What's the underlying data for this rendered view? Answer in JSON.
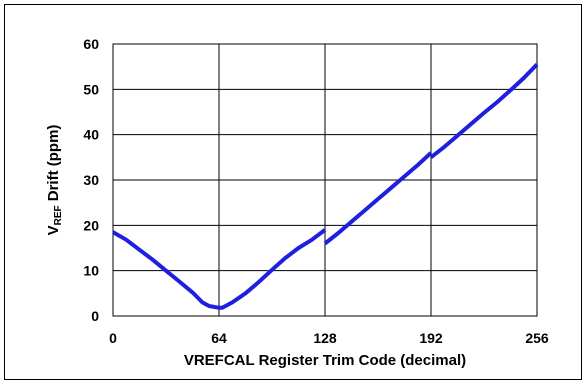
{
  "chart_data": {
    "type": "line",
    "xlabel": "VREFCAL Register Trim Code (decimal)",
    "ylabel_main": "V",
    "ylabel_sub": "REF",
    "ylabel_rest": " Drift (ppm)",
    "xlim": [
      0,
      256
    ],
    "ylim": [
      0,
      60
    ],
    "x_ticks": [
      0,
      64,
      128,
      192,
      256
    ],
    "y_ticks": [
      0,
      10,
      20,
      30,
      40,
      50,
      60
    ],
    "grid": true,
    "colors": {
      "line": "#1f1fe0",
      "axis": "#000000",
      "grid": "#000000"
    },
    "series": [
      {
        "segments": [
          [
            [
              0,
              18.5
            ],
            [
              8,
              16.8
            ],
            [
              16,
              14.6
            ],
            [
              24,
              12.4
            ],
            [
              32,
              10.0
            ],
            [
              40,
              7.6
            ],
            [
              48,
              5.2
            ],
            [
              54,
              3.0
            ],
            [
              58,
              2.2
            ],
            [
              64,
              1.8
            ],
            [
              66,
              1.8
            ],
            [
              72,
              3.0
            ],
            [
              80,
              5.0
            ],
            [
              88,
              7.5
            ],
            [
              96,
              10.2
            ],
            [
              104,
              12.8
            ],
            [
              112,
              15.0
            ],
            [
              120,
              16.8
            ],
            [
              128,
              19.0
            ]
          ],
          [
            [
              128,
              16.0
            ],
            [
              136,
              18.3
            ],
            [
              144,
              20.8
            ],
            [
              152,
              23.3
            ],
            [
              160,
              25.8
            ],
            [
              168,
              28.3
            ],
            [
              176,
              30.8
            ],
            [
              184,
              33.3
            ],
            [
              192,
              36.0
            ]
          ],
          [
            [
              192,
              35.0
            ],
            [
              200,
              37.3
            ],
            [
              208,
              39.8
            ],
            [
              216,
              42.3
            ],
            [
              224,
              44.8
            ],
            [
              232,
              47.2
            ],
            [
              240,
              49.8
            ],
            [
              248,
              52.5
            ],
            [
              256,
              55.5
            ]
          ]
        ]
      }
    ]
  }
}
